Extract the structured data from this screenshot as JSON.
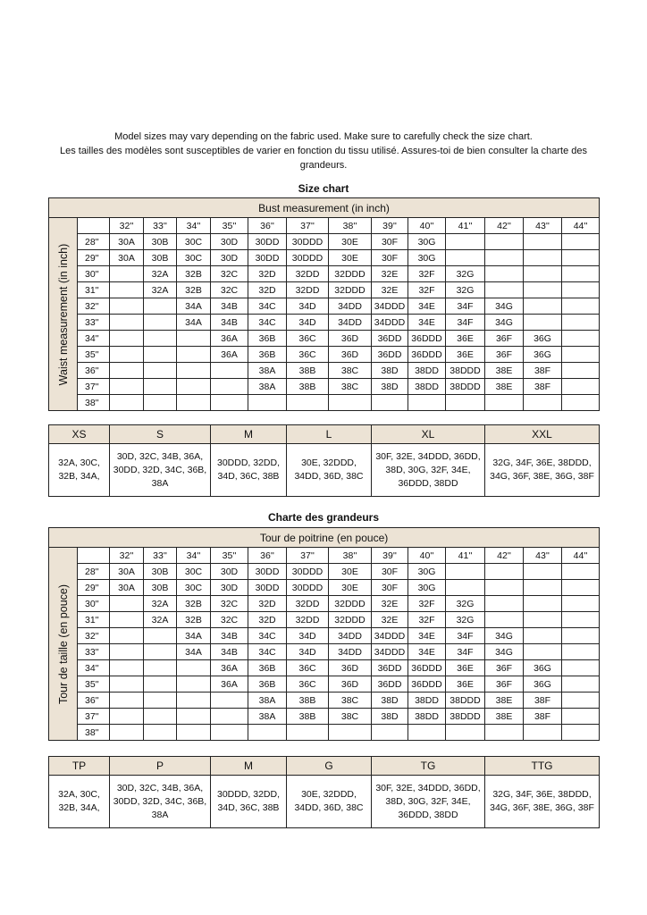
{
  "intro": {
    "line1": "Model sizes may vary depending on the fabric used. Make sure to carefully check the size chart.",
    "line2": "Les tailles des modèles sont susceptibles de varier en fonction du tissu utilisé. Assures-toi de bien consulter la charte des grandeurs."
  },
  "header_color": "#ece3d5",
  "charts": [
    {
      "title": "Size chart",
      "bust_label": "Bust measurement (in inch)",
      "waist_label": "Waist measurement (in inch)",
      "bust_columns": [
        "32''",
        "33''",
        "34''",
        "35''",
        "36''",
        "37''",
        "38''",
        "39''",
        "40''",
        "41''",
        "42''",
        "43''",
        "44''"
      ],
      "rows": [
        {
          "waist": "28''",
          "cells": [
            "30A",
            "30B",
            "30C",
            "30D",
            "30DD",
            "30DDD",
            "30E",
            "30F",
            "30G",
            "",
            "",
            "",
            ""
          ]
        },
        {
          "waist": "29''",
          "cells": [
            "30A",
            "30B",
            "30C",
            "30D",
            "30DD",
            "30DDD",
            "30E",
            "30F",
            "30G",
            "",
            "",
            "",
            ""
          ]
        },
        {
          "waist": "30''",
          "cells": [
            "",
            "32A",
            "32B",
            "32C",
            "32D",
            "32DD",
            "32DDD",
            "32E",
            "32F",
            "32G",
            "",
            "",
            ""
          ]
        },
        {
          "waist": "31''",
          "cells": [
            "",
            "32A",
            "32B",
            "32C",
            "32D",
            "32DD",
            "32DDD",
            "32E",
            "32F",
            "32G",
            "",
            "",
            ""
          ]
        },
        {
          "waist": "32''",
          "cells": [
            "",
            "",
            "34A",
            "34B",
            "34C",
            "34D",
            "34DD",
            "34DDD",
            "34E",
            "34F",
            "34G",
            "",
            ""
          ]
        },
        {
          "waist": "33''",
          "cells": [
            "",
            "",
            "34A",
            "34B",
            "34C",
            "34D",
            "34DD",
            "34DDD",
            "34E",
            "34F",
            "34G",
            "",
            ""
          ]
        },
        {
          "waist": "34''",
          "cells": [
            "",
            "",
            "",
            "36A",
            "36B",
            "36C",
            "36D",
            "36DD",
            "36DDD",
            "36E",
            "36F",
            "36G",
            ""
          ]
        },
        {
          "waist": "35''",
          "cells": [
            "",
            "",
            "",
            "36A",
            "36B",
            "36C",
            "36D",
            "36DD",
            "36DDD",
            "36E",
            "36F",
            "36G",
            ""
          ]
        },
        {
          "waist": "36''",
          "cells": [
            "",
            "",
            "",
            "",
            "38A",
            "38B",
            "38C",
            "38D",
            "38DD",
            "38DDD",
            "38E",
            "38F",
            ""
          ]
        },
        {
          "waist": "37''",
          "cells": [
            "",
            "",
            "",
            "",
            "38A",
            "38B",
            "38C",
            "38D",
            "38DD",
            "38DDD",
            "38E",
            "38F",
            ""
          ]
        },
        {
          "waist": "38''",
          "cells": [
            "",
            "",
            "",
            "",
            "",
            "",
            "",
            "",
            "",
            "",
            "",
            "",
            ""
          ]
        }
      ],
      "sizes": [
        {
          "label": "XS",
          "cups": "32A, 30C, 32B, 34A,"
        },
        {
          "label": "S",
          "cups": "30D, 32C, 34B, 36A, 30DD, 32D, 34C, 36B, 38A"
        },
        {
          "label": "M",
          "cups": "30DDD, 32DD, 34D, 36C, 38B"
        },
        {
          "label": "L",
          "cups": "30E, 32DDD, 34DD, 36D, 38C"
        },
        {
          "label": "XL",
          "cups": "30F, 32E, 34DDD, 36DD, 38D, 30G, 32F, 34E, 36DDD, 38DD"
        },
        {
          "label": "XXL",
          "cups": "32G, 34F, 36E, 38DDD, 34G, 36F, 38E, 36G, 38F"
        }
      ]
    },
    {
      "title": "Charte des grandeurs",
      "bust_label": "Tour de poitrine (en pouce)",
      "waist_label": "Tour de taille (en pouce)",
      "bust_columns": [
        "32''",
        "33''",
        "34''",
        "35''",
        "36''",
        "37''",
        "38''",
        "39''",
        "40''",
        "41''",
        "42''",
        "43''",
        "44''"
      ],
      "rows": [
        {
          "waist": "28''",
          "cells": [
            "30A",
            "30B",
            "30C",
            "30D",
            "30DD",
            "30DDD",
            "30E",
            "30F",
            "30G",
            "",
            "",
            "",
            ""
          ]
        },
        {
          "waist": "29''",
          "cells": [
            "30A",
            "30B",
            "30C",
            "30D",
            "30DD",
            "30DDD",
            "30E",
            "30F",
            "30G",
            "",
            "",
            "",
            ""
          ]
        },
        {
          "waist": "30''",
          "cells": [
            "",
            "32A",
            "32B",
            "32C",
            "32D",
            "32DD",
            "32DDD",
            "32E",
            "32F",
            "32G",
            "",
            "",
            ""
          ]
        },
        {
          "waist": "31''",
          "cells": [
            "",
            "32A",
            "32B",
            "32C",
            "32D",
            "32DD",
            "32DDD",
            "32E",
            "32F",
            "32G",
            "",
            "",
            ""
          ]
        },
        {
          "waist": "32''",
          "cells": [
            "",
            "",
            "34A",
            "34B",
            "34C",
            "34D",
            "34DD",
            "34DDD",
            "34E",
            "34F",
            "34G",
            "",
            ""
          ]
        },
        {
          "waist": "33''",
          "cells": [
            "",
            "",
            "34A",
            "34B",
            "34C",
            "34D",
            "34DD",
            "34DDD",
            "34E",
            "34F",
            "34G",
            "",
            ""
          ]
        },
        {
          "waist": "34''",
          "cells": [
            "",
            "",
            "",
            "36A",
            "36B",
            "36C",
            "36D",
            "36DD",
            "36DDD",
            "36E",
            "36F",
            "36G",
            ""
          ]
        },
        {
          "waist": "35''",
          "cells": [
            "",
            "",
            "",
            "36A",
            "36B",
            "36C",
            "36D",
            "36DD",
            "36DDD",
            "36E",
            "36F",
            "36G",
            ""
          ]
        },
        {
          "waist": "36''",
          "cells": [
            "",
            "",
            "",
            "",
            "38A",
            "38B",
            "38C",
            "38D",
            "38DD",
            "38DDD",
            "38E",
            "38F",
            ""
          ]
        },
        {
          "waist": "37''",
          "cells": [
            "",
            "",
            "",
            "",
            "38A",
            "38B",
            "38C",
            "38D",
            "38DD",
            "38DDD",
            "38E",
            "38F",
            ""
          ]
        },
        {
          "waist": "38''",
          "cells": [
            "",
            "",
            "",
            "",
            "",
            "",
            "",
            "",
            "",
            "",
            "",
            "",
            ""
          ]
        }
      ],
      "sizes": [
        {
          "label": "TP",
          "cups": "32A, 30C, 32B, 34A,"
        },
        {
          "label": "P",
          "cups": "30D, 32C, 34B, 36A, 30DD, 32D, 34C, 36B, 38A"
        },
        {
          "label": "M",
          "cups": "30DDD, 32DD, 34D, 36C, 38B"
        },
        {
          "label": "G",
          "cups": "30E, 32DDD, 34DD, 36D, 38C"
        },
        {
          "label": "TG",
          "cups": "30F, 32E, 34DDD, 36DD, 38D, 30G, 32F, 34E, 36DDD, 38DD"
        },
        {
          "label": "TTG",
          "cups": "32G, 34F, 36E, 38DDD, 34G, 36F, 38E, 36G, 38F"
        }
      ]
    }
  ]
}
